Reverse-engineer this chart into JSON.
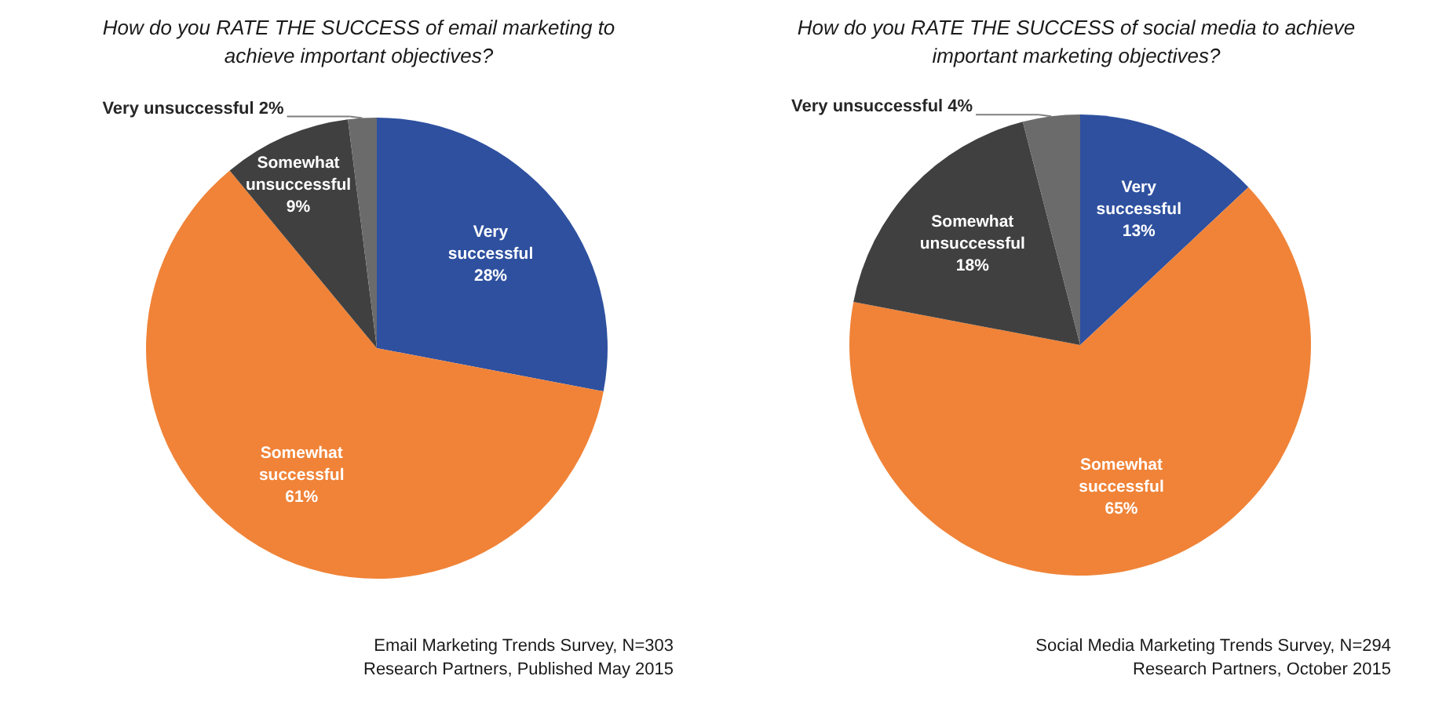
{
  "chart_data": [
    {
      "type": "pie",
      "title": "How do you RATE THE SUCCESS of email marketing to achieve important objectives?",
      "categories": [
        "Very successful",
        "Somewhat successful",
        "Somewhat unsuccessful",
        "Very unsuccessful"
      ],
      "values": [
        28,
        61,
        9,
        2
      ],
      "colors": [
        "#2e509f",
        "#f08338",
        "#404040",
        "#6b6b6b"
      ],
      "value_labels": [
        "28%",
        "61%",
        "9%",
        "2%"
      ],
      "annotations": [
        "Email Marketing Trends Survey, N=303",
        "Research Partners, Published May 2015"
      ]
    },
    {
      "type": "pie",
      "title": "How do you RATE THE SUCCESS of social media to achieve important marketing objectives?",
      "categories": [
        "Very successful",
        "Somewhat successful",
        "Somewhat unsuccessful",
        "Very unsuccessful"
      ],
      "values": [
        13,
        65,
        18,
        4
      ],
      "colors": [
        "#2e509f",
        "#f08338",
        "#404040",
        "#6b6b6b"
      ],
      "value_labels": [
        "13%",
        "65%",
        "18%",
        "4%"
      ],
      "annotations": [
        "Social Media Marketing Trends Survey, N=294",
        "Research Partners, October 2015"
      ]
    }
  ]
}
